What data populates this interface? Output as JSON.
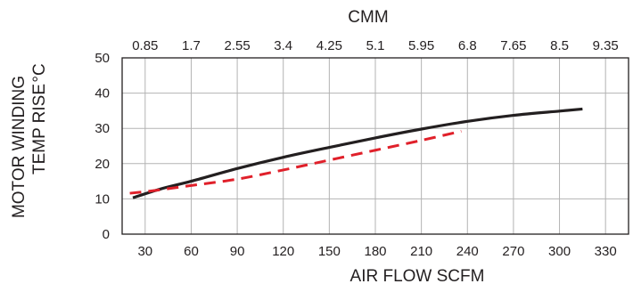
{
  "chart_data": {
    "type": "line",
    "title": "",
    "xlabel": "AIR FLOW  SCFM",
    "x2label": "CMM",
    "ylabel_line1": "MOTOR WINDING",
    "ylabel_line2": "TEMP RISE",
    "ylabel_unit": "°C",
    "xlim": [
      15,
      345
    ],
    "ylim": [
      0,
      50
    ],
    "x_ticks": [
      30,
      60,
      90,
      120,
      150,
      180,
      210,
      240,
      270,
      300,
      330
    ],
    "x_tick_labels": [
      "30",
      "60",
      "90",
      "120",
      "150",
      "180",
      "210",
      "240",
      "270",
      "300",
      "330"
    ],
    "x2_tick_labels": [
      "0.85",
      "1.7",
      "2.55",
      "3.4",
      "4.25",
      "5.1",
      "5.95",
      "6.8",
      "7.65",
      "8.5",
      "9.35"
    ],
    "y_ticks": [
      0,
      10,
      20,
      30,
      40,
      50
    ],
    "y_tick_labels": [
      "0",
      "10",
      "20",
      "30",
      "40",
      "50"
    ],
    "grid": true,
    "series": [
      {
        "style": "solid",
        "color": "#231f20",
        "x": [
          22,
          40,
          60,
          90,
          120,
          150,
          180,
          210,
          240,
          270,
          300,
          315
        ],
        "y": [
          10.3,
          12.8,
          15.0,
          18.6,
          21.8,
          24.6,
          27.3,
          29.8,
          32.0,
          33.7,
          34.9,
          35.5
        ]
      },
      {
        "style": "dashed",
        "color": "#e0202a",
        "x": [
          20,
          35,
          60,
          90,
          120,
          150,
          180,
          210,
          236
        ],
        "y": [
          11.6,
          12.3,
          13.8,
          15.6,
          18.2,
          21.0,
          23.8,
          26.6,
          29.2
        ]
      }
    ]
  }
}
